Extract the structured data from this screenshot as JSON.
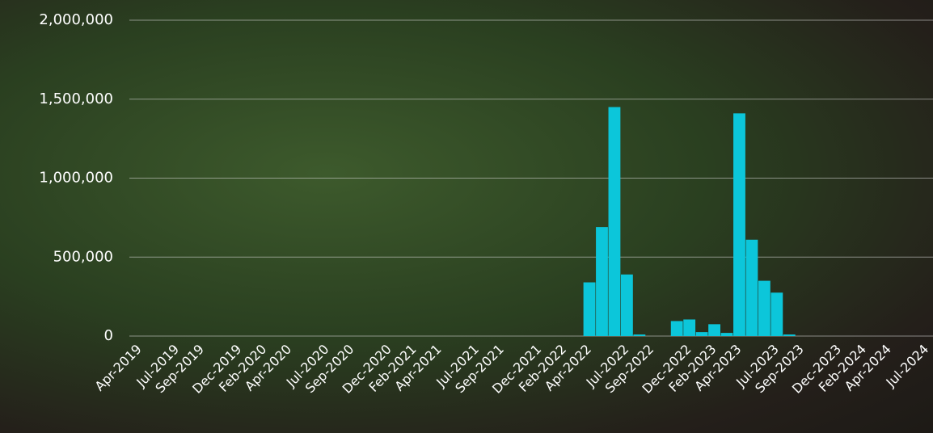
{
  "chart_data": {
    "type": "bar",
    "categories": [
      "Apr-2019",
      null,
      null,
      "Jul-2019",
      null,
      "Sep-2019",
      null,
      null,
      "Dec-2019",
      null,
      "Feb-2020",
      null,
      "Apr-2020",
      null,
      null,
      "Jul-2020",
      null,
      "Sep-2020",
      null,
      null,
      "Dec-2020",
      null,
      "Feb-2021",
      null,
      "Apr-2021",
      null,
      null,
      "Jul-2021",
      null,
      "Sep-2021",
      null,
      null,
      "Dec-2021",
      null,
      "Feb-2022",
      null,
      "Apr-2022",
      null,
      null,
      "Jul-2022",
      null,
      "Sep-2022",
      null,
      null,
      "Dec-2022",
      null,
      "Feb-2023",
      null,
      "Apr-2023",
      null,
      null,
      "Jul-2023",
      null,
      "Sep-2023",
      null,
      null,
      "Dec-2023",
      null,
      "Feb-2024",
      null,
      "Apr-2024",
      null,
      null,
      "Jul-2024"
    ],
    "values": [
      0,
      0,
      0,
      0,
      0,
      0,
      0,
      0,
      0,
      0,
      0,
      0,
      0,
      0,
      0,
      0,
      0,
      0,
      0,
      0,
      0,
      0,
      0,
      0,
      0,
      0,
      0,
      0,
      0,
      0,
      0,
      0,
      0,
      0,
      0,
      0,
      340000,
      690000,
      1450000,
      390000,
      10000,
      0,
      0,
      95000,
      105000,
      25000,
      75000,
      20000,
      1410000,
      610000,
      350000,
      275000,
      10000,
      0,
      0,
      0,
      0,
      0,
      0,
      0,
      0,
      0,
      0,
      0
    ],
    "color": "#0cc6da",
    "ylim": [
      0,
      2000000
    ],
    "yticks": [
      0,
      {
        "value": 500000,
        "label": "500,000"
      },
      {
        "value": 1000000,
        "label": "1,000,000"
      },
      {
        "value": 1500000,
        "label": "1,500,000"
      },
      {
        "value": 2000000,
        "label": "2,000,000"
      }
    ],
    "grid": true
  }
}
